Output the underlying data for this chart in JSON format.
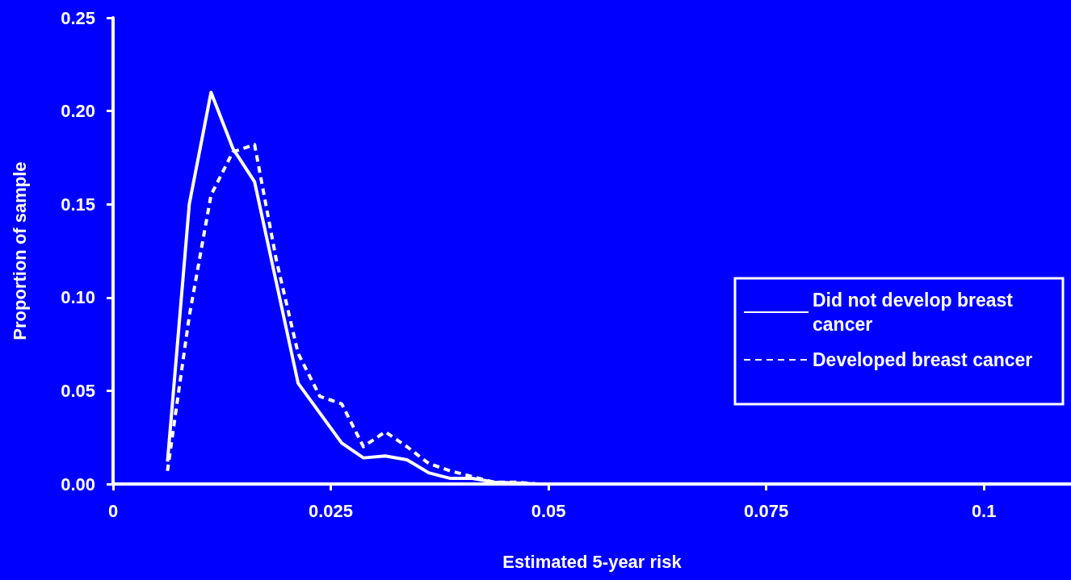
{
  "chart_data": {
    "type": "line",
    "xlabel": "Estimated 5-year risk",
    "ylabel": "Proportion of sample",
    "xlim": [
      0,
      0.11
    ],
    "xticks": [
      0,
      0.025,
      0.05,
      0.075,
      0.1
    ],
    "ylim": [
      0,
      0.25
    ],
    "yticks": [
      {
        "value": 0,
        "label": "0.00"
      },
      {
        "value": 0.05,
        "label": "0.05"
      },
      {
        "value": 0.1,
        "label": "0.10"
      },
      {
        "value": 0.15,
        "label": "0.15"
      },
      {
        "value": 0.2,
        "label": "0.20"
      },
      {
        "value": 0.25,
        "label": "0.25"
      }
    ],
    "x": [
      0.00625,
      0.00875,
      0.01125,
      0.01375,
      0.01625,
      0.01875,
      0.02125,
      0.02375,
      0.02625,
      0.02875,
      0.03125,
      0.03375,
      0.03625,
      0.03875,
      0.04125,
      0.04375,
      0.04625,
      0.04875,
      0.05125,
      0.05375,
      0.05625,
      0.05875,
      0.06125,
      0.06375,
      0.06625,
      0.06875,
      0.07125,
      0.07375,
      0.07625
    ],
    "series": [
      {
        "name": "Did not develop breast cancer",
        "color": "#ffffff",
        "line_style": "solid",
        "values": [
          0.012,
          0.15,
          0.21,
          0.18,
          0.162,
          0.108,
          0.054,
          0.038,
          0.022,
          0.014,
          0.015,
          0.013,
          0.006,
          0.003,
          0.003,
          0.001,
          0.0005,
          0,
          0,
          0,
          0,
          0,
          0,
          0,
          0,
          0,
          0,
          0,
          0
        ]
      },
      {
        "name": "Developed breast cancer",
        "color": "#ffffff",
        "line_style": "dashed",
        "values": [
          0.007,
          0.09,
          0.155,
          0.178,
          0.182,
          0.12,
          0.07,
          0.047,
          0.043,
          0.02,
          0.028,
          0.02,
          0.011,
          0.007,
          0.004,
          0.001,
          0.001,
          0,
          0,
          0,
          0,
          0,
          0,
          0,
          0,
          0,
          0,
          0,
          0
        ]
      }
    ],
    "marker": "none",
    "grid": false,
    "legend": "right"
  }
}
